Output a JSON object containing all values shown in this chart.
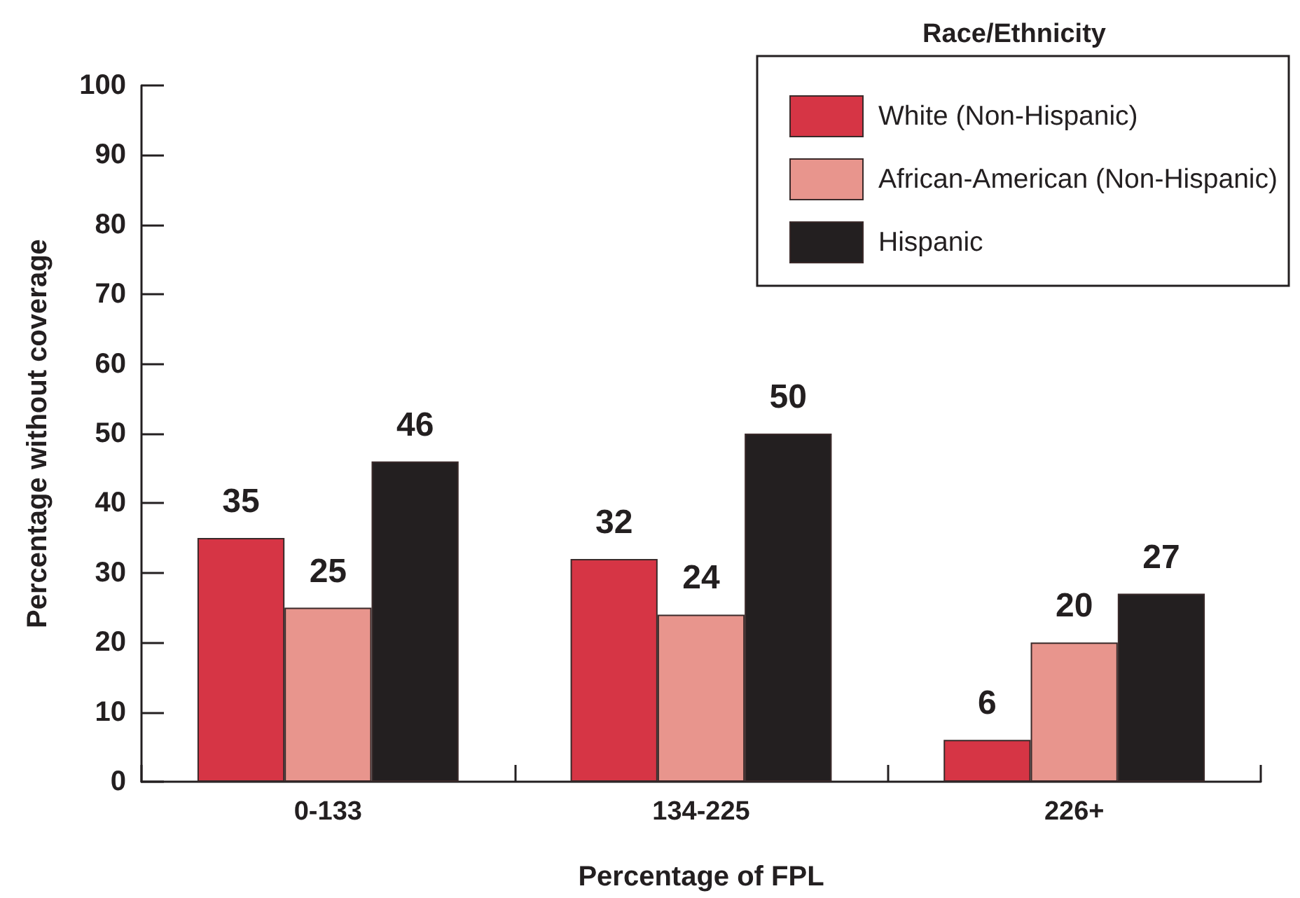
{
  "chart_data": {
    "type": "bar",
    "xlabel": "Percentage of FPL",
    "ylabel": "Percentage without coverage",
    "legend_title": "Race/Ethnicity",
    "categories": [
      "0-133",
      "134-225",
      "226+"
    ],
    "series": [
      {
        "name": "White (Non-Hispanic)",
        "color": "#d63545",
        "values": [
          35,
          32,
          6
        ]
      },
      {
        "name": "African-American (Non-Hispanic)",
        "color": "#e8958d",
        "values": [
          25,
          24,
          20
        ]
      },
      {
        "name": "Hispanic",
        "color": "#231f20",
        "values": [
          46,
          50,
          27
        ]
      }
    ],
    "ylim": [
      0,
      100
    ],
    "yticks": [
      0,
      10,
      20,
      30,
      40,
      50,
      60,
      70,
      80,
      90,
      100
    ],
    "data_labels": true,
    "legend": "top right"
  }
}
